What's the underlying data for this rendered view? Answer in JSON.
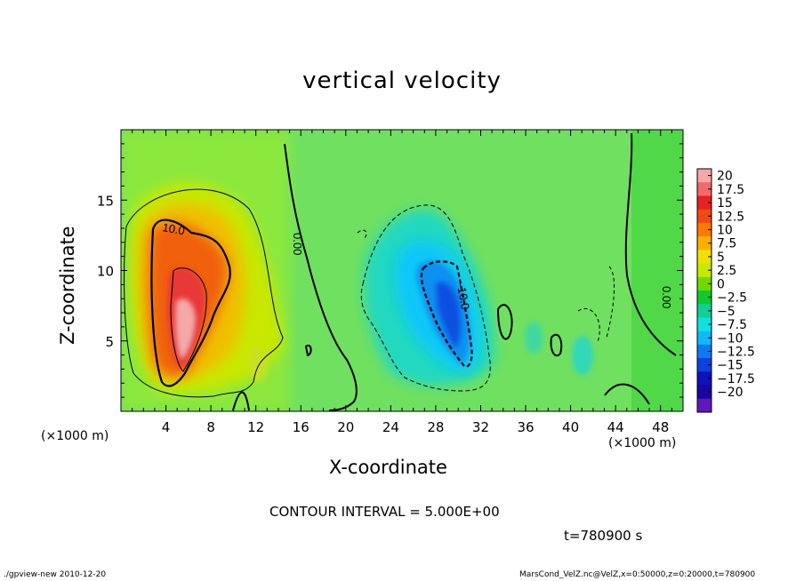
{
  "chart_data": {
    "type": "heatmap",
    "title": "vertical velocity",
    "xlabel": "X-coordinate",
    "ylabel": "Z-coordinate",
    "x_unit": "(×1000 m)",
    "y_unit": "(×1000 m)",
    "xlim": [
      0,
      50
    ],
    "ylim": [
      0,
      20
    ],
    "x_ticks": [
      "4",
      "8",
      "12",
      "16",
      "20",
      "24",
      "28",
      "32",
      "36",
      "40",
      "44",
      "48"
    ],
    "y_ticks": [
      "5",
      "10",
      "15"
    ],
    "colorbar": {
      "labels": [
        "20",
        "17.5",
        "15",
        "12.5",
        "10",
        "7.5",
        "5",
        "2.5",
        "0",
        "-2.5",
        "-5",
        "-7.5",
        "-10",
        "-12.5",
        "-15",
        "-17.5",
        "-20"
      ],
      "colors": [
        "#f4a8a8",
        "#f06a6a",
        "#e82020",
        "#f04a10",
        "#f87a00",
        "#f8b000",
        "#f0e000",
        "#c8e800",
        "#70d800",
        "#10c830",
        "#10d098",
        "#10e0e0",
        "#10b8f8",
        "#1078f0",
        "#1040e0",
        "#1010c0",
        "#1808a0",
        "#6018b8"
      ]
    },
    "contour_labels": [
      "10.0",
      "0.00",
      "-10.0",
      "0.00"
    ],
    "contour_interval": "CONTOUR INTERVAL = 5.000E+00",
    "time": "t=780900 s"
  },
  "footer": {
    "left": "./gpview-new   2010-12-20",
    "right": "MarsCond_VelZ.nc@VelZ,x=0:50000,z=0:20000,t=780900"
  }
}
